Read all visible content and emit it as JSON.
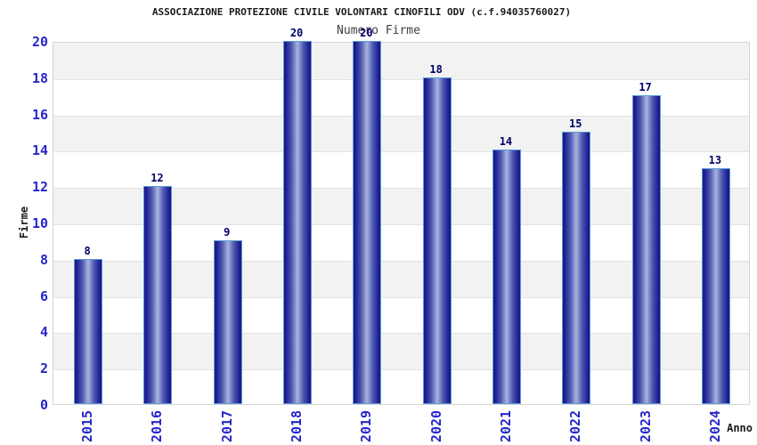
{
  "chart_data": {
    "type": "bar",
    "title": "ASSOCIAZIONE PROTEZIONE CIVILE VOLONTARI CINOFILI ODV (c.f.94035760027)",
    "subtitle": "Numero Firme",
    "xlabel": "Anno",
    "ylabel": "Firme",
    "categories": [
      "2015",
      "2016",
      "2017",
      "2018",
      "2019",
      "2020",
      "2021",
      "2022",
      "2023",
      "2024"
    ],
    "values": [
      8,
      12,
      9,
      20,
      20,
      18,
      14,
      15,
      17,
      13
    ],
    "ylim": [
      0,
      20
    ],
    "yticks": [
      0,
      2,
      4,
      6,
      8,
      10,
      12,
      14,
      16,
      18,
      20
    ],
    "grid": true,
    "alternating_bands": true,
    "legend": "none"
  },
  "colors": {
    "bar_dark": "#1a1a8c",
    "bar_mid": "#4d58b2",
    "bar_light": "#aab4de",
    "bar_border": "#5b9bd5",
    "tick_label": "#2626cc",
    "value_label": "#000066",
    "band_gray": "#f2f2f2",
    "grid_line": "#e2e2e2",
    "plot_border": "#d5d5d5",
    "title_color": "#1a1a1a",
    "subtitle_color": "#404040",
    "background": "#ffffff"
  }
}
